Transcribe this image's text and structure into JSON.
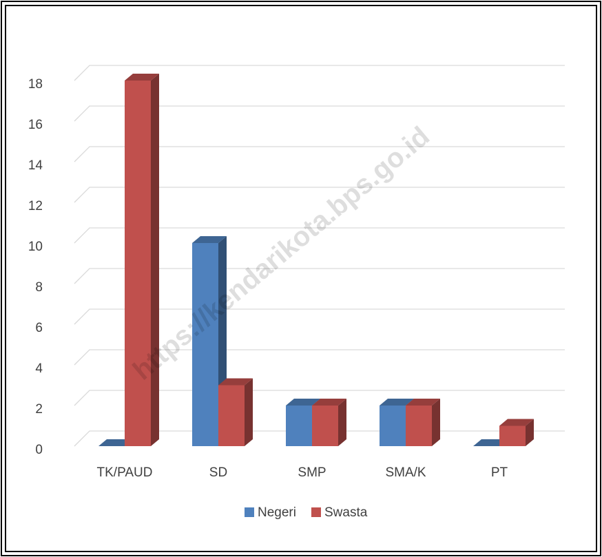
{
  "chart_data": {
    "type": "bar3d",
    "categories": [
      "TK/PAUD",
      "SD",
      "SMP",
      "SMA/K",
      "PT"
    ],
    "series": [
      {
        "name": "Negeri",
        "color": "#4f81bd",
        "values": [
          0,
          10,
          2,
          2,
          0
        ]
      },
      {
        "name": "Swasta",
        "color": "#c0504d",
        "values": [
          18,
          3,
          2,
          2,
          1
        ]
      }
    ],
    "ylim": [
      0,
      18
    ],
    "yticks": [
      0,
      2,
      4,
      6,
      8,
      10,
      12,
      14,
      16,
      18
    ],
    "grid": true,
    "legend": "bottom",
    "watermark": "https://kendarikota.bps.go.id"
  }
}
